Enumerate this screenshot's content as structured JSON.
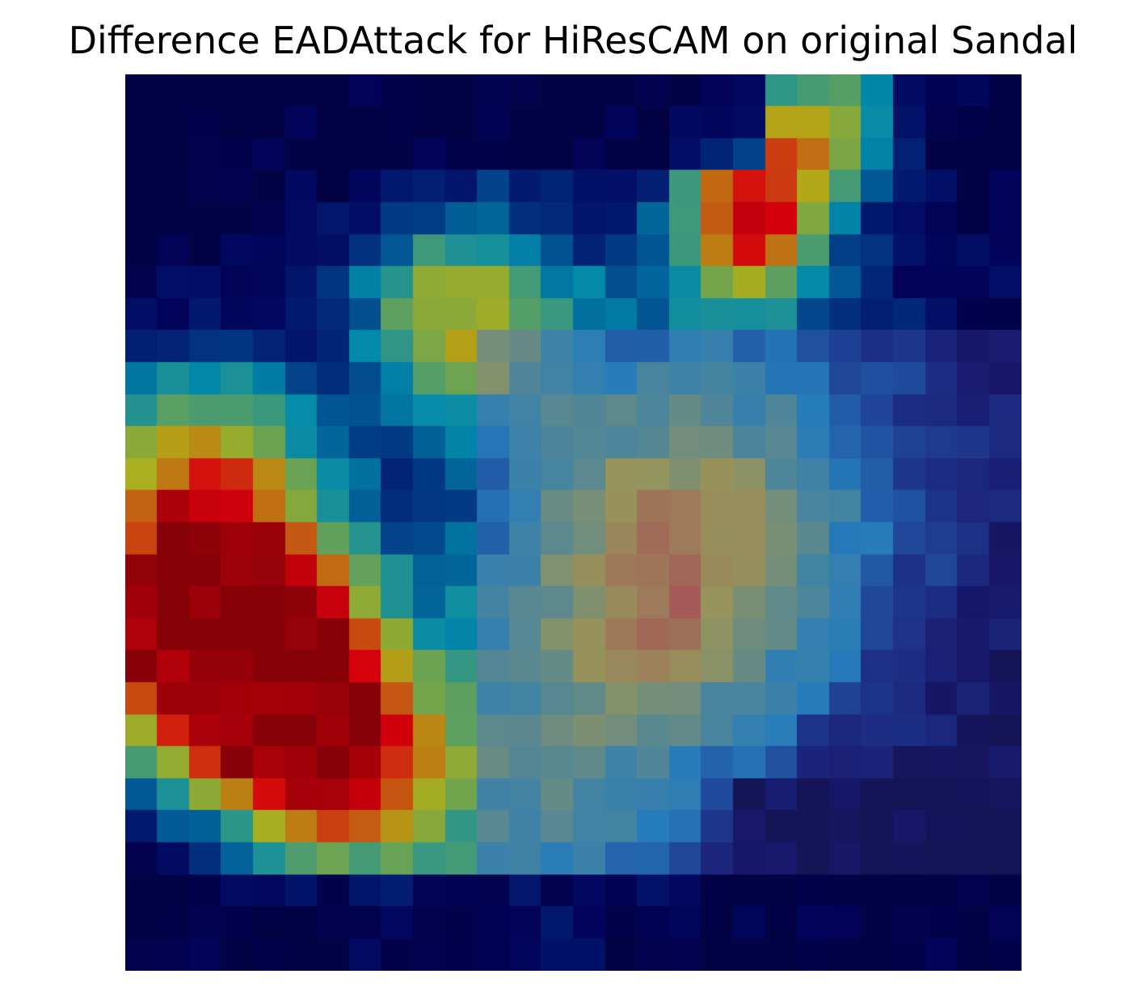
{
  "figure": {
    "title": "Difference EADAttack for HiResCAM on original Sandal",
    "image_description_icon": "heatmap-overlay-image"
  },
  "heatmap": {
    "grid": "28x28",
    "colormap": "jet blended over dark-blue image",
    "hotspot_color": "#8a1a00",
    "background_color": "#00004a"
  }
}
